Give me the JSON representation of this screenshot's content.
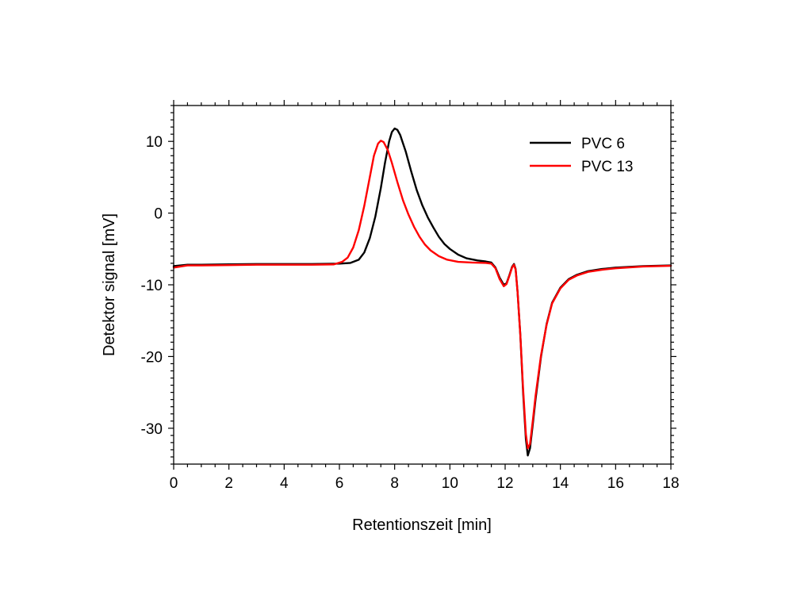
{
  "chart_data": {
    "type": "line",
    "xlabel": "Retentionszeit [min]",
    "ylabel": "Detektor signal [mV]",
    "xlim": [
      0,
      18
    ],
    "ylim": [
      -35,
      15
    ],
    "xticks": [
      0,
      2,
      4,
      6,
      8,
      10,
      12,
      14,
      16,
      18
    ],
    "yticks": [
      -30,
      -20,
      -10,
      0,
      10
    ],
    "xtick_labels": [
      "0",
      "2",
      "4",
      "6",
      "8",
      "10",
      "12",
      "14",
      "16",
      "18"
    ],
    "ytick_labels": [
      "-30",
      "-20",
      "-10",
      "0",
      "10"
    ],
    "grid": false,
    "legend_position": "top-right",
    "series": [
      {
        "name": "PVC 6",
        "color": "#000000",
        "points": [
          [
            0.0,
            -7.4
          ],
          [
            0.5,
            -7.2
          ],
          [
            1.0,
            -7.2
          ],
          [
            2.0,
            -7.15
          ],
          [
            3.0,
            -7.1
          ],
          [
            4.0,
            -7.1
          ],
          [
            5.0,
            -7.1
          ],
          [
            6.0,
            -7.05
          ],
          [
            6.4,
            -6.95
          ],
          [
            6.7,
            -6.5
          ],
          [
            6.9,
            -5.5
          ],
          [
            7.1,
            -3.5
          ],
          [
            7.3,
            -0.5
          ],
          [
            7.5,
            3.5
          ],
          [
            7.65,
            7.0
          ],
          [
            7.8,
            10.0
          ],
          [
            7.9,
            11.3
          ],
          [
            8.0,
            11.8
          ],
          [
            8.1,
            11.6
          ],
          [
            8.2,
            10.9
          ],
          [
            8.4,
            8.6
          ],
          [
            8.6,
            5.8
          ],
          [
            8.8,
            3.2
          ],
          [
            9.0,
            1.1
          ],
          [
            9.2,
            -0.6
          ],
          [
            9.4,
            -2.0
          ],
          [
            9.6,
            -3.3
          ],
          [
            9.8,
            -4.3
          ],
          [
            10.0,
            -5.0
          ],
          [
            10.3,
            -5.8
          ],
          [
            10.6,
            -6.3
          ],
          [
            11.0,
            -6.6
          ],
          [
            11.3,
            -6.75
          ],
          [
            11.5,
            -6.9
          ],
          [
            11.65,
            -7.6
          ],
          [
            11.8,
            -9.0
          ],
          [
            11.95,
            -10.0
          ],
          [
            12.05,
            -9.8
          ],
          [
            12.15,
            -8.7
          ],
          [
            12.25,
            -7.5
          ],
          [
            12.32,
            -7.1
          ],
          [
            12.38,
            -7.8
          ],
          [
            12.45,
            -11.0
          ],
          [
            12.55,
            -17.0
          ],
          [
            12.65,
            -25.0
          ],
          [
            12.75,
            -31.5
          ],
          [
            12.82,
            -33.8
          ],
          [
            12.9,
            -32.8
          ],
          [
            13.0,
            -29.5
          ],
          [
            13.1,
            -26.0
          ],
          [
            13.3,
            -20.0
          ],
          [
            13.5,
            -15.5
          ],
          [
            13.7,
            -12.5
          ],
          [
            14.0,
            -10.4
          ],
          [
            14.3,
            -9.2
          ],
          [
            14.6,
            -8.6
          ],
          [
            15.0,
            -8.1
          ],
          [
            15.5,
            -7.8
          ],
          [
            16.0,
            -7.6
          ],
          [
            17.0,
            -7.4
          ],
          [
            18.0,
            -7.3
          ]
        ]
      },
      {
        "name": "PVC 13",
        "color": "#ff0000",
        "points": [
          [
            0.0,
            -7.6
          ],
          [
            0.5,
            -7.3
          ],
          [
            1.0,
            -7.3
          ],
          [
            2.0,
            -7.25
          ],
          [
            3.0,
            -7.2
          ],
          [
            4.0,
            -7.2
          ],
          [
            5.0,
            -7.2
          ],
          [
            5.8,
            -7.15
          ],
          [
            6.1,
            -6.8
          ],
          [
            6.3,
            -6.2
          ],
          [
            6.5,
            -4.8
          ],
          [
            6.7,
            -2.4
          ],
          [
            6.9,
            1.0
          ],
          [
            7.1,
            5.0
          ],
          [
            7.25,
            8.0
          ],
          [
            7.4,
            9.7
          ],
          [
            7.5,
            10.1
          ],
          [
            7.6,
            9.9
          ],
          [
            7.75,
            8.8
          ],
          [
            7.9,
            7.0
          ],
          [
            8.1,
            4.3
          ],
          [
            8.3,
            1.8
          ],
          [
            8.5,
            -0.2
          ],
          [
            8.7,
            -1.9
          ],
          [
            8.9,
            -3.3
          ],
          [
            9.1,
            -4.4
          ],
          [
            9.3,
            -5.2
          ],
          [
            9.6,
            -6.0
          ],
          [
            9.9,
            -6.5
          ],
          [
            10.3,
            -6.8
          ],
          [
            10.8,
            -6.9
          ],
          [
            11.3,
            -6.95
          ],
          [
            11.5,
            -7.05
          ],
          [
            11.65,
            -7.7
          ],
          [
            11.8,
            -9.2
          ],
          [
            11.95,
            -10.2
          ],
          [
            12.05,
            -9.9
          ],
          [
            12.15,
            -8.8
          ],
          [
            12.25,
            -7.6
          ],
          [
            12.32,
            -7.2
          ],
          [
            12.38,
            -7.9
          ],
          [
            12.45,
            -11.0
          ],
          [
            12.55,
            -17.0
          ],
          [
            12.65,
            -24.5
          ],
          [
            12.75,
            -30.8
          ],
          [
            12.82,
            -32.8
          ],
          [
            12.9,
            -32.2
          ],
          [
            13.0,
            -29.0
          ],
          [
            13.1,
            -25.5
          ],
          [
            13.3,
            -19.8
          ],
          [
            13.5,
            -15.6
          ],
          [
            13.7,
            -12.6
          ],
          [
            14.0,
            -10.5
          ],
          [
            14.3,
            -9.3
          ],
          [
            14.6,
            -8.7
          ],
          [
            15.0,
            -8.2
          ],
          [
            15.5,
            -7.9
          ],
          [
            16.0,
            -7.7
          ],
          [
            17.0,
            -7.45
          ],
          [
            18.0,
            -7.35
          ]
        ]
      }
    ]
  }
}
